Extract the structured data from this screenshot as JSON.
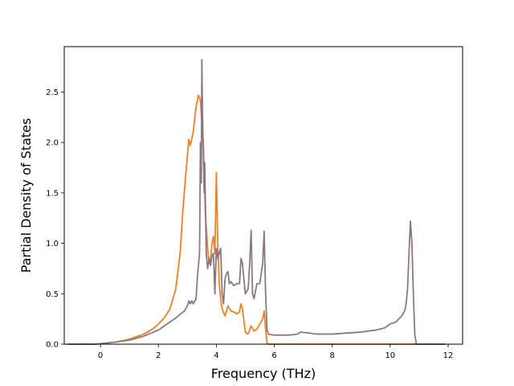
{
  "chart_data": {
    "type": "line",
    "title": "",
    "xlabel": "Frequency (THz)",
    "ylabel": "Partial Density of States",
    "xlim": [
      -1.25,
      12.5
    ],
    "ylim": [
      0,
      2.95
    ],
    "xticks": [
      0,
      2,
      4,
      6,
      8,
      10,
      12
    ],
    "xtick_labels": [
      "0",
      "2",
      "4",
      "6",
      "8",
      "10",
      "12"
    ],
    "yticks": [
      0.0,
      0.5,
      1.0,
      1.5,
      2.0,
      2.5
    ],
    "ytick_labels": [
      "0.0",
      "0.5",
      "1.0",
      "1.5",
      "2.0",
      "2.5"
    ],
    "grid": false,
    "legend": "none",
    "series": [
      {
        "color": "#e8822a",
        "x": [
          -1.15,
          -0.2,
          0.0,
          0.5,
          1.0,
          1.5,
          1.8,
          2.0,
          2.2,
          2.4,
          2.6,
          2.75,
          2.85,
          2.95,
          3.05,
          3.1,
          3.2,
          3.3,
          3.38,
          3.45,
          3.5,
          3.55,
          3.62,
          3.7,
          3.75,
          3.8,
          3.85,
          3.9,
          3.95,
          4.0,
          4.05,
          4.1,
          4.15,
          4.2,
          4.3,
          4.4,
          4.5,
          4.6,
          4.7,
          4.8,
          4.85,
          4.9,
          5.0,
          5.1,
          5.2,
          5.3,
          5.4,
          5.5,
          5.6,
          5.65,
          5.7,
          5.75,
          5.8,
          6.0,
          7.0,
          8.0,
          9.0,
          10.0,
          10.8,
          11.0,
          11.9
        ],
        "y": [
          0.0,
          0.0,
          0.005,
          0.02,
          0.05,
          0.1,
          0.15,
          0.2,
          0.26,
          0.35,
          0.55,
          0.9,
          1.35,
          1.7,
          2.03,
          1.97,
          2.1,
          2.35,
          2.47,
          2.42,
          2.2,
          2.0,
          1.3,
          0.95,
          0.8,
          0.85,
          1.0,
          1.07,
          0.9,
          1.7,
          1.0,
          0.6,
          0.45,
          0.35,
          0.28,
          0.38,
          0.33,
          0.32,
          0.3,
          0.32,
          0.4,
          0.35,
          0.12,
          0.1,
          0.18,
          0.13,
          0.15,
          0.2,
          0.25,
          0.33,
          0.15,
          0.01,
          0.0,
          0.0,
          0.0,
          0.0,
          0.0,
          0.0,
          0.0,
          0.0,
          0.0
        ]
      },
      {
        "color": "#8a7880",
        "x": [
          -1.15,
          -0.2,
          0.0,
          0.5,
          1.0,
          1.5,
          2.0,
          2.3,
          2.6,
          2.9,
          3.0,
          3.05,
          3.1,
          3.15,
          3.2,
          3.3,
          3.35,
          3.42,
          3.45,
          3.48,
          3.5,
          3.52,
          3.55,
          3.58,
          3.6,
          3.65,
          3.7,
          3.75,
          3.8,
          3.85,
          3.9,
          3.95,
          4.0,
          4.05,
          4.1,
          4.15,
          4.2,
          4.25,
          4.3,
          4.35,
          4.4,
          4.45,
          4.5,
          4.6,
          4.7,
          4.8,
          4.85,
          4.9,
          5.0,
          5.1,
          5.15,
          5.2,
          5.25,
          5.3,
          5.4,
          5.5,
          5.6,
          5.65,
          5.7,
          5.75,
          5.8,
          6.0,
          6.5,
          6.8,
          6.9,
          7.5,
          8.0,
          8.5,
          9.0,
          9.5,
          9.8,
          10.0,
          10.2,
          10.3,
          10.4,
          10.5,
          10.55,
          10.6,
          10.65,
          10.7,
          10.75,
          10.8,
          10.85,
          10.9,
          11.9
        ],
        "y": [
          0.0,
          0.0,
          0.005,
          0.02,
          0.04,
          0.08,
          0.14,
          0.2,
          0.26,
          0.33,
          0.38,
          0.43,
          0.4,
          0.43,
          0.4,
          0.45,
          0.68,
          0.9,
          2.0,
          1.6,
          2.82,
          2.3,
          1.9,
          1.5,
          1.8,
          0.9,
          0.75,
          0.85,
          0.78,
          0.88,
          0.9,
          0.5,
          0.95,
          0.85,
          0.9,
          0.95,
          0.5,
          0.4,
          0.65,
          0.7,
          0.72,
          0.6,
          0.62,
          0.58,
          0.6,
          0.6,
          0.85,
          0.8,
          0.5,
          0.55,
          0.8,
          1.13,
          0.5,
          0.45,
          0.6,
          0.6,
          0.8,
          1.12,
          0.5,
          0.14,
          0.1,
          0.09,
          0.09,
          0.1,
          0.12,
          0.1,
          0.1,
          0.11,
          0.12,
          0.14,
          0.16,
          0.2,
          0.22,
          0.25,
          0.28,
          0.33,
          0.4,
          0.55,
          0.9,
          1.22,
          1.0,
          0.5,
          0.1,
          0.0,
          0.0
        ]
      }
    ]
  }
}
